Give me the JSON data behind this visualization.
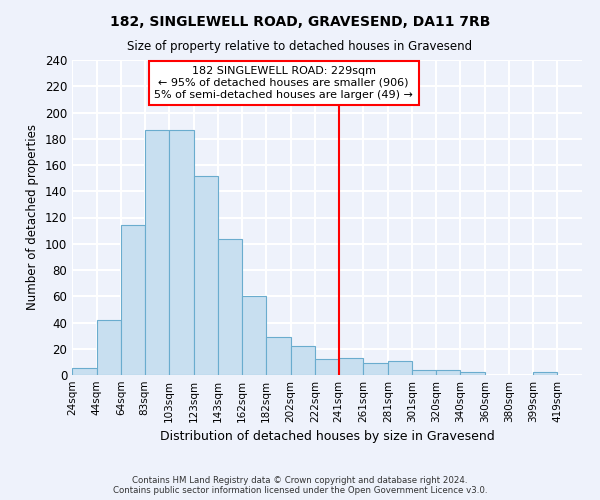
{
  "title": "182, SINGLEWELL ROAD, GRAVESEND, DA11 7RB",
  "subtitle": "Size of property relative to detached houses in Gravesend",
  "xlabel": "Distribution of detached houses by size in Gravesend",
  "ylabel": "Number of detached properties",
  "bar_labels": [
    "24sqm",
    "44sqm",
    "64sqm",
    "83sqm",
    "103sqm",
    "123sqm",
    "143sqm",
    "162sqm",
    "182sqm",
    "202sqm",
    "222sqm",
    "241sqm",
    "261sqm",
    "281sqm",
    "301sqm",
    "320sqm",
    "340sqm",
    "360sqm",
    "380sqm",
    "399sqm",
    "419sqm"
  ],
  "bar_values": [
    5,
    42,
    114,
    187,
    187,
    152,
    104,
    60,
    29,
    22,
    12,
    13,
    9,
    11,
    4,
    4,
    2,
    0,
    0,
    2,
    0
  ],
  "bar_color": "#c8dff0",
  "bar_edge_color": "#6aacce",
  "vline_x_label": "222sqm",
  "vline_color": "red",
  "annotation_title": "182 SINGLEWELL ROAD: 229sqm",
  "annotation_line1": "← 95% of detached houses are smaller (906)",
  "annotation_line2": "5% of semi-detached houses are larger (49) →",
  "annotation_box_color": "white",
  "annotation_box_edge": "red",
  "ylim": [
    0,
    240
  ],
  "yticks": [
    0,
    20,
    40,
    60,
    80,
    100,
    120,
    140,
    160,
    180,
    200,
    220,
    240
  ],
  "footer_line1": "Contains HM Land Registry data © Crown copyright and database right 2024.",
  "footer_line2": "Contains public sector information licensed under the Open Government Licence v3.0.",
  "bg_color": "#eef2fb",
  "grid_color": "white"
}
